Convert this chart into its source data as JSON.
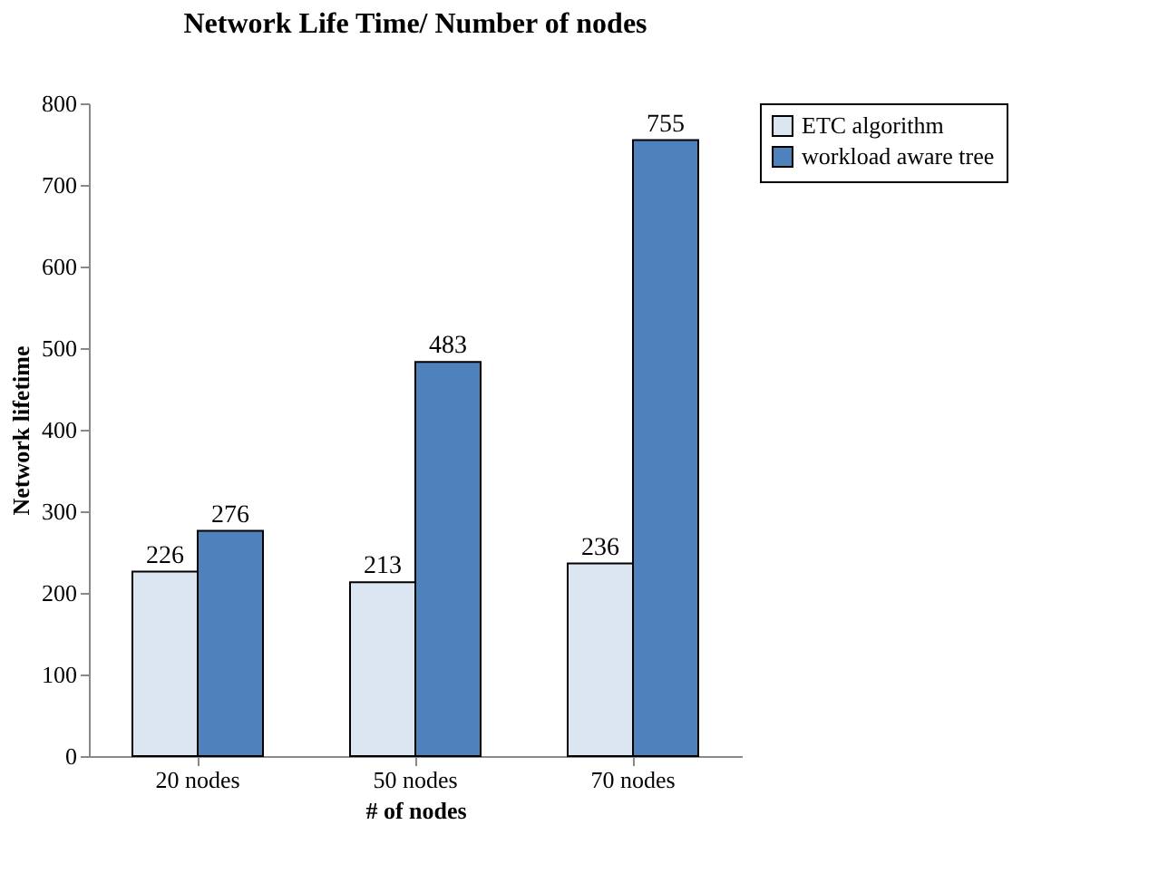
{
  "chart_data": {
    "type": "bar",
    "title": "Network Life Time/ Number of nodes",
    "xlabel": "# of nodes",
    "ylabel": "Network lifetime",
    "categories": [
      "20 nodes",
      "50 nodes",
      "70 nodes"
    ],
    "series": [
      {
        "name": "ETC algorithm",
        "color": "#dce6f2",
        "values": [
          226,
          213,
          236
        ]
      },
      {
        "name": "workload aware tree",
        "color": "#4f81bd",
        "values": [
          276,
          483,
          755
        ]
      }
    ],
    "ylim": [
      0,
      800
    ],
    "yticks": [
      0,
      100,
      200,
      300,
      400,
      500,
      600,
      700,
      800
    ],
    "grid": false,
    "legend": "top right",
    "data_labels": true
  }
}
